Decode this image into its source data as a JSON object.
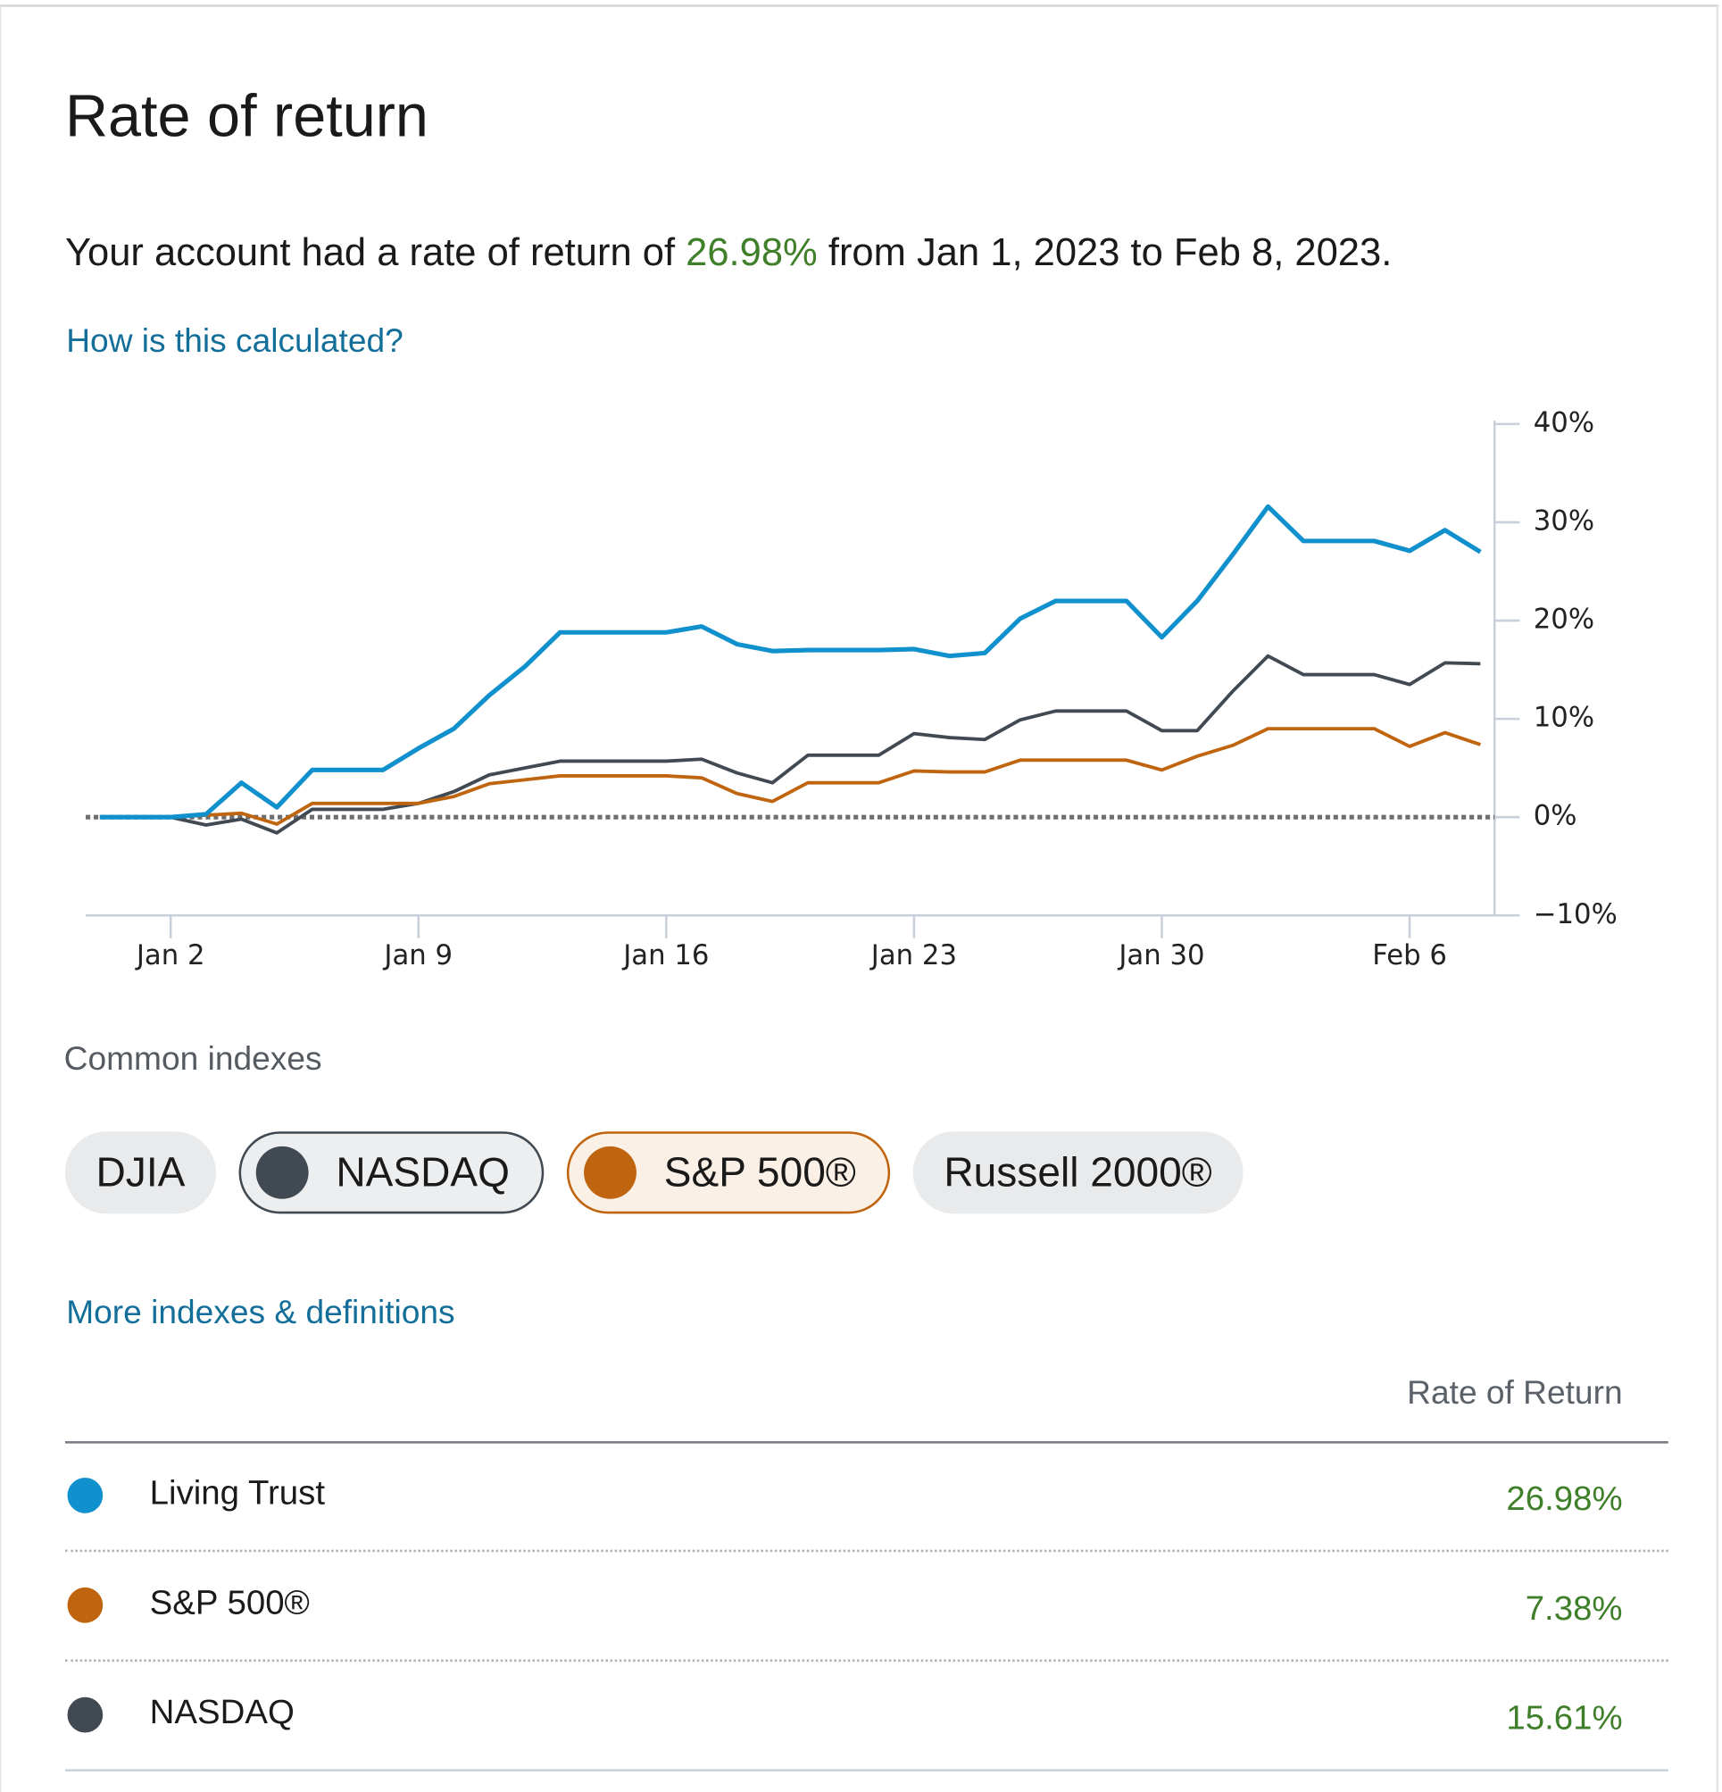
{
  "header": {
    "title": "Rate of return"
  },
  "summary": {
    "before": "Your account had a rate of return of ",
    "value": "26.98%",
    "after": " from Jan 1, 2023 to Feb 8, 2023."
  },
  "links": {
    "calculated": "How is this calculated?",
    "more": "More indexes & definitions"
  },
  "chart_data": {
    "type": "line",
    "x": [
      0,
      1,
      2,
      3,
      4,
      5,
      6,
      7,
      8,
      9,
      10,
      11,
      12,
      13,
      14,
      15,
      16,
      17,
      18,
      19,
      20,
      21,
      22,
      23,
      24,
      25,
      26,
      27,
      28,
      29,
      30,
      31,
      32,
      33,
      34,
      35,
      36,
      37,
      38,
      39
    ],
    "series": [
      {
        "name": "Living Trust",
        "color": "#1090cc",
        "values": [
          0,
          0,
          0,
          0.3,
          3.5,
          1.0,
          4.8,
          4.8,
          4.8,
          7.0,
          9.0,
          12.4,
          15.3,
          18.8,
          18.8,
          18.8,
          18.8,
          19.4,
          17.6,
          16.9,
          17.0,
          17.0,
          17.0,
          17.1,
          16.4,
          16.7,
          20.2,
          22.0,
          22.0,
          22.0,
          18.3,
          22.0,
          26.7,
          31.6,
          28.1,
          28.1,
          28.1,
          27.1,
          29.2,
          26.98
        ]
      },
      {
        "name": "S&P 500®",
        "color": "#c0650f",
        "values": [
          0,
          0,
          0,
          0.2,
          0.4,
          -0.7,
          1.4,
          1.4,
          1.4,
          1.4,
          2.1,
          3.4,
          3.8,
          4.2,
          4.2,
          4.2,
          4.2,
          4.0,
          2.4,
          1.6,
          3.5,
          3.5,
          3.5,
          4.7,
          4.6,
          4.6,
          5.8,
          5.8,
          5.8,
          5.8,
          4.8,
          6.2,
          7.3,
          9.0,
          9.0,
          9.0,
          9.0,
          7.2,
          8.6,
          7.38
        ]
      },
      {
        "name": "NASDAQ",
        "color": "#414a53",
        "values": [
          0,
          0,
          0,
          -0.8,
          -0.2,
          -1.6,
          0.8,
          0.8,
          0.8,
          1.4,
          2.6,
          4.3,
          5.0,
          5.7,
          5.7,
          5.7,
          5.7,
          5.9,
          4.5,
          3.5,
          6.3,
          6.3,
          6.3,
          8.5,
          8.1,
          7.9,
          9.9,
          10.8,
          10.8,
          10.8,
          8.8,
          8.8,
          12.8,
          16.4,
          14.5,
          14.5,
          14.5,
          13.5,
          15.7,
          15.61
        ]
      }
    ],
    "xlim": [
      -0.4,
      39.4
    ],
    "xticks": [
      {
        "value": 2,
        "label": "Jan 2"
      },
      {
        "value": 9,
        "label": "Jan 9"
      },
      {
        "value": 16,
        "label": "Jan 16"
      },
      {
        "value": 23,
        "label": "Jan 23"
      },
      {
        "value": 30,
        "label": "Jan 30"
      },
      {
        "value": 37,
        "label": "Feb 6"
      }
    ],
    "ylim": [
      -10,
      40
    ],
    "yticks": [
      {
        "value": -10,
        "label": "−10%"
      },
      {
        "value": 0,
        "label": "0%"
      },
      {
        "value": 10,
        "label": "10%"
      },
      {
        "value": 20,
        "label": "20%"
      },
      {
        "value": 30,
        "label": "30%"
      },
      {
        "value": 40,
        "label": "40%"
      }
    ],
    "zero_line": true,
    "axis_color": "#c8d0dc"
  },
  "indexes": {
    "heading": "Common indexes",
    "chips": [
      {
        "label": "DJIA",
        "active": false
      },
      {
        "label": "NASDAQ",
        "active": true,
        "color": "#414a53",
        "background": "#eceef0"
      },
      {
        "label": "S&P 500®",
        "active": true,
        "color": "#c0650f",
        "background": "#fbf0e6"
      },
      {
        "label": "Russell 2000®",
        "active": false
      }
    ]
  },
  "table": {
    "header": "Rate of Return",
    "rows": [
      "26.98%",
      "7.38%",
      "15.61%"
    ]
  }
}
